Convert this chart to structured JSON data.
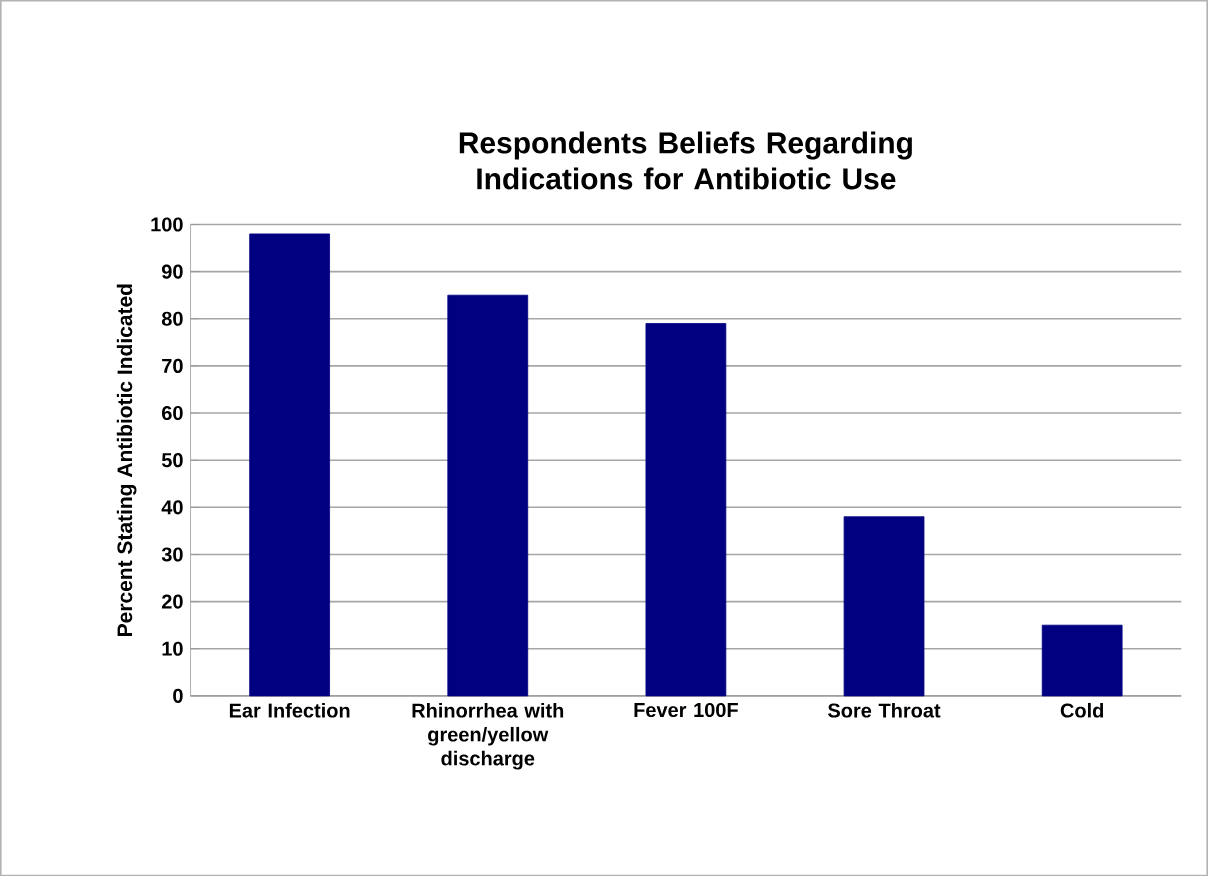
{
  "chart_data": {
    "type": "bar",
    "title": "Respondents Beliefs Regarding Indications for Antibiotic Use",
    "ylabel": "Percent Stating Antibiotic Indicated",
    "categories": [
      "Ear Infection",
      "Rhinorrhea with green/yellow discharge",
      "Fever 100F",
      "Sore Throat",
      "Cold"
    ],
    "values": [
      98,
      85,
      79,
      38,
      15
    ],
    "color": "#000080",
    "ylim": [
      0,
      100
    ],
    "yticks": [
      0,
      10,
      20,
      30,
      40,
      50,
      60,
      70,
      80,
      90,
      100
    ],
    "grid": "y"
  }
}
